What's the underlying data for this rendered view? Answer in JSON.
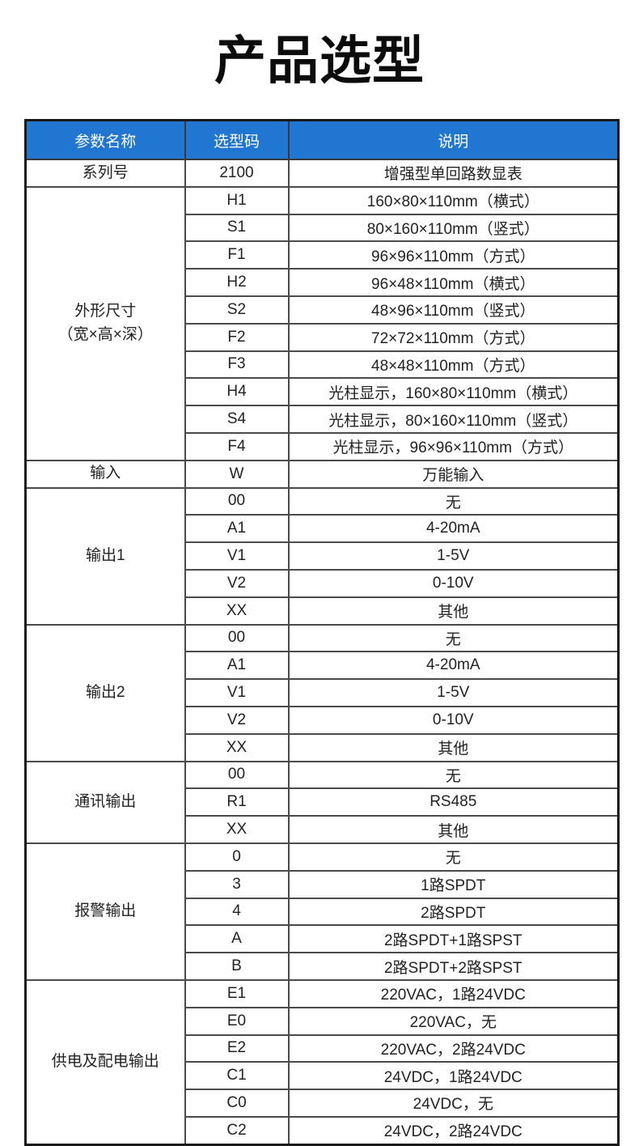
{
  "page": {
    "title": "产品选型"
  },
  "colors": {
    "header_bg": "#2176D2",
    "header_text": "#FFFFFF",
    "border_outer": "#1A1A1A",
    "border_inner": "#4A4A4A",
    "body_text": "#222222"
  },
  "table": {
    "headers": [
      "参数名称",
      "选型码",
      "说明"
    ],
    "groups": [
      {
        "param_lines": [
          "系列号"
        ],
        "rows": [
          {
            "code": "2100",
            "desc": "增强型单回路数显表"
          }
        ]
      },
      {
        "param_lines": [
          "外形尺寸",
          "（宽×高×深）"
        ],
        "rows": [
          {
            "code": "H1",
            "desc": "160×80×110mm（横式）"
          },
          {
            "code": "S1",
            "desc": "80×160×110mm（竖式）"
          },
          {
            "code": "F1",
            "desc": "96×96×110mm（方式）"
          },
          {
            "code": "H2",
            "desc": "96×48×110mm（横式）"
          },
          {
            "code": "S2",
            "desc": "48×96×110mm（竖式）"
          },
          {
            "code": "F2",
            "desc": "72×72×110mm（方式）"
          },
          {
            "code": "F3",
            "desc": "48×48×110mm（方式）"
          },
          {
            "code": "H4",
            "desc": "光柱显示，160×80×110mm（横式）"
          },
          {
            "code": "S4",
            "desc": "光柱显示，80×160×110mm（竖式）"
          },
          {
            "code": "F4",
            "desc": "光柱显示，96×96×110mm（方式）"
          }
        ]
      },
      {
        "param_lines": [
          "输入"
        ],
        "rows": [
          {
            "code": "W",
            "desc": "万能输入"
          }
        ]
      },
      {
        "param_lines": [
          "输出1"
        ],
        "rows": [
          {
            "code": "00",
            "desc": "无"
          },
          {
            "code": "A1",
            "desc": "4-20mA"
          },
          {
            "code": "V1",
            "desc": "1-5V"
          },
          {
            "code": "V2",
            "desc": "0-10V"
          },
          {
            "code": "XX",
            "desc": "其他"
          }
        ]
      },
      {
        "param_lines": [
          "输出2"
        ],
        "rows": [
          {
            "code": "00",
            "desc": "无"
          },
          {
            "code": "A1",
            "desc": "4-20mA"
          },
          {
            "code": "V1",
            "desc": "1-5V"
          },
          {
            "code": "V2",
            "desc": "0-10V"
          },
          {
            "code": "XX",
            "desc": "其他"
          }
        ]
      },
      {
        "param_lines": [
          "通讯输出"
        ],
        "rows": [
          {
            "code": "00",
            "desc": "无"
          },
          {
            "code": "R1",
            "desc": "RS485"
          },
          {
            "code": "XX",
            "desc": "其他"
          }
        ]
      },
      {
        "param_lines": [
          "报警输出"
        ],
        "rows": [
          {
            "code": "0",
            "desc": "无"
          },
          {
            "code": "3",
            "desc": "1路SPDT"
          },
          {
            "code": "4",
            "desc": "2路SPDT"
          },
          {
            "code": "A",
            "desc": "2路SPDT+1路SPST"
          },
          {
            "code": "B",
            "desc": "2路SPDT+2路SPST"
          }
        ]
      },
      {
        "param_lines": [
          "供电及配电输出"
        ],
        "rows": [
          {
            "code": "E1",
            "desc": "220VAC，1路24VDC"
          },
          {
            "code": "E0",
            "desc": "220VAC，无"
          },
          {
            "code": "E2",
            "desc": "220VAC，2路24VDC"
          },
          {
            "code": "C1",
            "desc": "24VDC，1路24VDC"
          },
          {
            "code": "C0",
            "desc": "24VDC，无"
          },
          {
            "code": "C2",
            "desc": "24VDC，2路24VDC"
          }
        ]
      }
    ]
  }
}
